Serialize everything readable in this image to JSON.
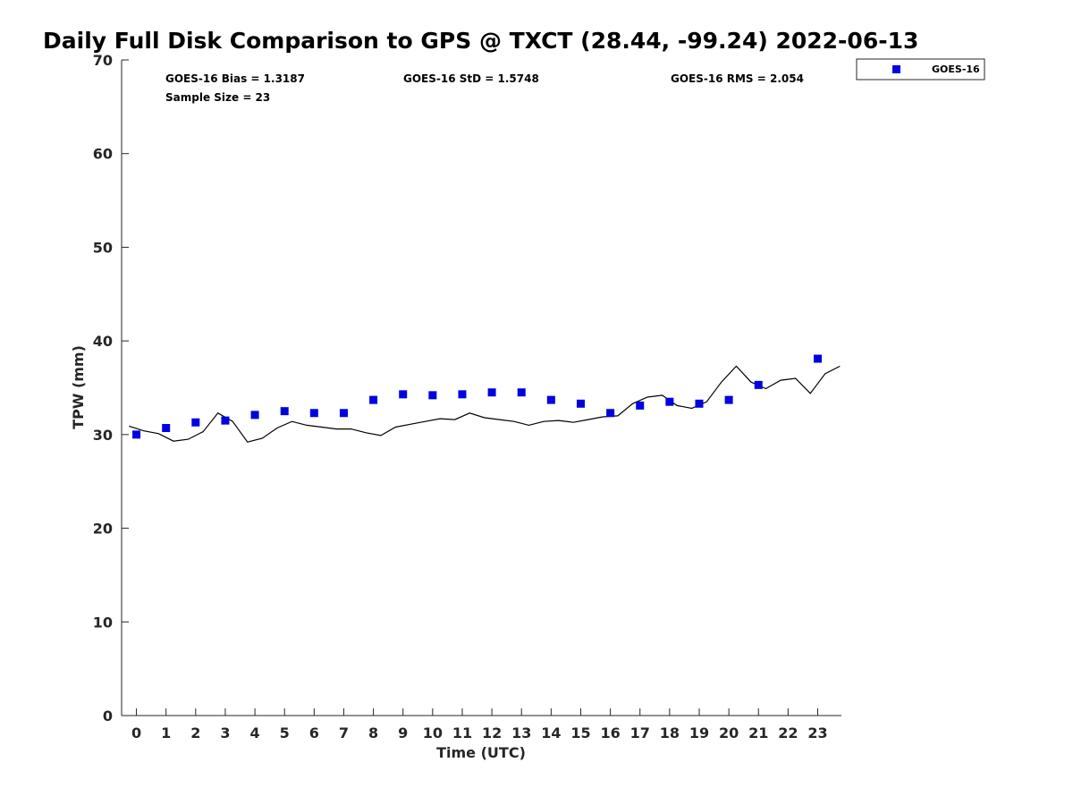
{
  "chart_data": {
    "type": "scatter",
    "title": "Daily Full Disk Comparison to GPS @ TXCT (28.44, -99.24) 2022-06-13",
    "xlabel": "Time (UTC)",
    "ylabel": "TPW (mm)",
    "xlim": [
      -0.5,
      23.8
    ],
    "ylim": [
      0,
      70
    ],
    "x_ticks": [
      "0",
      "1",
      "2",
      "3",
      "4",
      "5",
      "6",
      "7",
      "8",
      "9",
      "10",
      "11",
      "12",
      "13",
      "14",
      "15",
      "16",
      "17",
      "18",
      "19",
      "20",
      "21",
      "22",
      "23"
    ],
    "y_ticks": [
      "0",
      "10",
      "20",
      "30",
      "40",
      "50",
      "60",
      "70"
    ],
    "grid": false,
    "legend_position": "top-right (outside plot)",
    "stats": {
      "bias": "GOES-16 Bias = 1.3187",
      "std": "GOES-16 StD = 1.5748",
      "rms": "GOES-16 RMS = 2.054",
      "sample_size": "Sample Size = 23"
    },
    "series": [
      {
        "name": "GOES-16",
        "kind": "scatter",
        "marker": "square",
        "color": "#0000e0",
        "x": [
          0,
          1,
          2,
          3,
          4,
          5,
          6,
          7,
          8,
          9,
          10,
          11,
          12,
          13,
          14,
          15,
          16,
          17,
          18,
          19,
          20,
          21,
          23
        ],
        "y": [
          30.0,
          30.7,
          31.3,
          31.5,
          32.1,
          32.5,
          32.3,
          32.3,
          33.7,
          34.3,
          34.2,
          34.3,
          34.5,
          34.5,
          33.7,
          33.3,
          32.3,
          33.1,
          33.5,
          33.3,
          33.7,
          35.3,
          38.1
        ]
      },
      {
        "kind": "line",
        "color": "#000000",
        "x": [
          -0.25,
          0.25,
          0.75,
          1.25,
          1.75,
          2.25,
          2.75,
          3.25,
          3.75,
          4.25,
          4.75,
          5.25,
          5.75,
          6.25,
          6.75,
          7.25,
          7.75,
          8.25,
          8.75,
          9.25,
          9.75,
          10.25,
          10.75,
          11.25,
          11.75,
          12.25,
          12.75,
          13.25,
          13.75,
          14.25,
          14.75,
          15.25,
          15.75,
          16.25,
          16.75,
          17.25,
          17.75,
          18.25,
          18.75,
          19.25,
          19.75,
          20.25,
          20.75,
          21.25,
          21.75,
          22.25,
          22.75,
          23.25,
          23.75
        ],
        "y": [
          30.9,
          30.4,
          30.1,
          29.3,
          29.5,
          30.3,
          32.3,
          31.4,
          29.2,
          29.6,
          30.7,
          31.4,
          31.0,
          30.8,
          30.6,
          30.6,
          30.2,
          29.9,
          30.8,
          31.1,
          31.4,
          31.7,
          31.6,
          32.3,
          31.8,
          31.6,
          31.4,
          31.0,
          31.4,
          31.5,
          31.3,
          31.6,
          31.9,
          32.0,
          33.3,
          34.0,
          34.2,
          33.1,
          32.8,
          33.5,
          35.6,
          37.3,
          35.6,
          34.9,
          35.8,
          36.0,
          34.4,
          36.5,
          37.3
        ]
      }
    ]
  }
}
